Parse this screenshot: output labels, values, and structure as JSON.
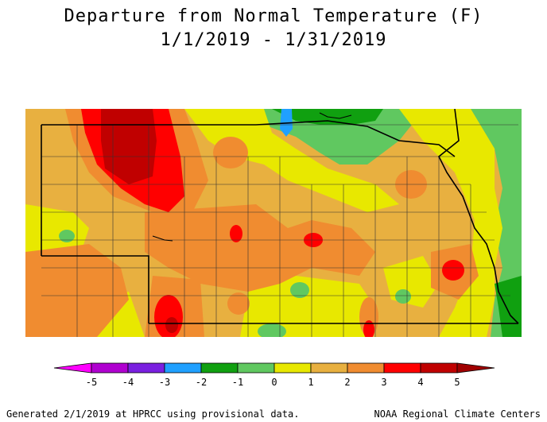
{
  "title": {
    "line1": "Departure from Normal Temperature (F)",
    "line2": "1/1/2019 - 1/31/2019"
  },
  "legend": {
    "unit": "F",
    "ticks": [
      "-5",
      "-4",
      "-3",
      "-2",
      "-1",
      "0",
      "1",
      "2",
      "3",
      "4",
      "5"
    ],
    "colors": [
      "#b000d0",
      "#7a20e0",
      "#20a0ff",
      "#10a010",
      "#60c860",
      "#e8e800",
      "#e8b040",
      "#f08c30",
      "#ff0000",
      "#c00000"
    ],
    "low_arrow_color": "#ff00ff",
    "high_arrow_color": "#a00000"
  },
  "map": {
    "region": "Nebraska",
    "colors": {
      "cool_green": "#60c860",
      "dark_green": "#10a010",
      "blue": "#20a0ff",
      "yellow": "#e8e800",
      "light_orange": "#e8b040",
      "orange": "#f08c30",
      "red": "#ff0000",
      "dark_red": "#c00000"
    }
  },
  "footer": {
    "left": "Generated 2/1/2019 at HPRCC using provisional data.",
    "right": "NOAA Regional Climate Centers"
  }
}
